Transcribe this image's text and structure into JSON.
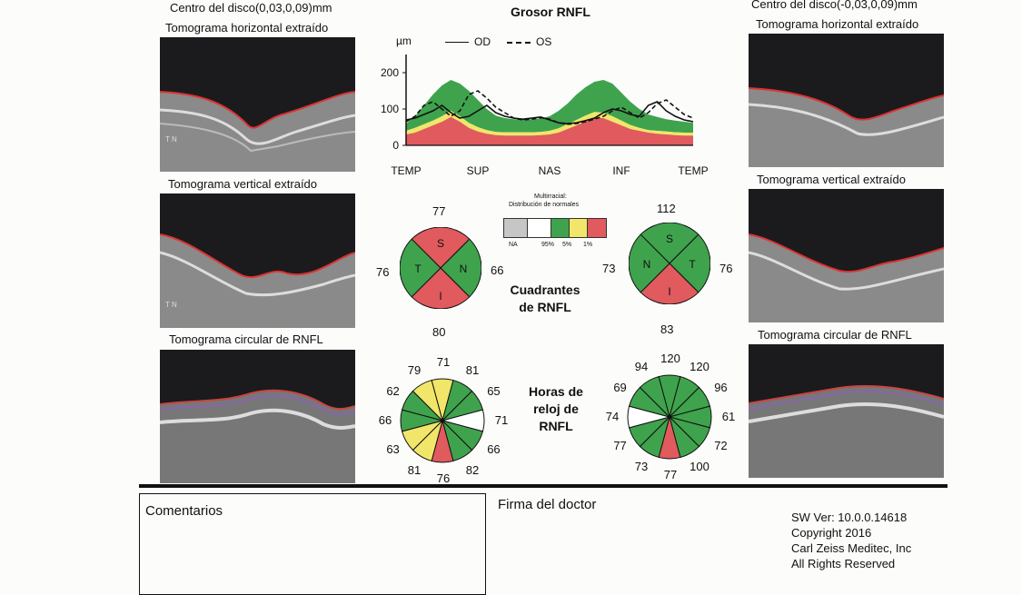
{
  "left": {
    "center_label": "Centro del disco(0,03,0,09)mm",
    "horizontal_label": "Tomograma horizontal extraído",
    "vertical_label": "Tomograma vertical extraído",
    "circular_label": "Tomograma circular de RNFL",
    "scan_mark_h": "T  N",
    "scan_mark_v": "T  N"
  },
  "right": {
    "center_label": "Centro del disco(-0,03,0,09)mm",
    "horizontal_label": "Tomograma horizontal extraído",
    "vertical_label": "Tomograma vertical extraído",
    "circular_label": "Tomograma circular de RNFL"
  },
  "center": {
    "chart_title": "Grosor RNFL",
    "legend_od": "OD",
    "legend_os": "OS",
    "unit": "µm",
    "normative_title": "Multirracial:",
    "normative_subtitle": "Distribución de normales",
    "normative_labels": [
      "NA",
      "95%",
      "5%",
      "1%"
    ],
    "quadrants_title_line1": "Cuadrantes",
    "quadrants_title_line2": "de RNFL",
    "clock_title_line1": "Horas de",
    "clock_title_line2": "reloj de",
    "clock_title_line3": "RNFL"
  },
  "chart_data": {
    "type": "line",
    "title": "Grosor RNFL",
    "ylabel": "µm",
    "ylim": [
      0,
      250
    ],
    "yticks": [
      0,
      100,
      200
    ],
    "x_tick_labels": [
      "TEMP",
      "SUP",
      "NAS",
      "INF",
      "TEMP"
    ],
    "x": [
      0,
      8,
      16,
      24,
      32,
      40,
      48,
      56,
      64,
      72,
      80,
      88,
      96,
      104,
      112,
      120,
      128,
      136,
      144,
      152,
      160,
      168,
      176,
      184,
      192,
      200,
      208,
      216,
      224,
      232,
      240,
      248,
      256
    ],
    "normative_bands": {
      "p1": [
        30,
        35,
        45,
        55,
        65,
        78,
        65,
        48,
        38,
        32,
        28,
        27,
        27,
        27,
        27,
        28,
        30,
        35,
        45,
        55,
        65,
        75,
        75,
        65,
        55,
        45,
        40,
        35,
        32,
        30,
        28,
        27,
        27
      ],
      "p5": [
        40,
        48,
        58,
        68,
        80,
        95,
        80,
        62,
        50,
        42,
        37,
        36,
        36,
        36,
        36,
        37,
        40,
        47,
        58,
        70,
        82,
        92,
        90,
        80,
        68,
        56,
        48,
        42,
        40,
        38,
        36,
        35,
        35
      ],
      "p95": [
        60,
        80,
        110,
        140,
        165,
        180,
        170,
        150,
        125,
        100,
        82,
        75,
        72,
        72,
        72,
        74,
        80,
        95,
        115,
        140,
        160,
        175,
        180,
        170,
        145,
        120,
        100,
        85,
        78,
        72,
        68,
        65,
        62
      ]
    },
    "series": [
      {
        "name": "OD",
        "style": "solid",
        "values": [
          70,
          75,
          85,
          95,
          110,
          90,
          75,
          80,
          95,
          110,
          90,
          80,
          75,
          72,
          75,
          78,
          70,
          62,
          60,
          62,
          68,
          75,
          90,
          100,
          95,
          85,
          80,
          110,
          120,
          95,
          80,
          70,
          65
        ]
      },
      {
        "name": "OS",
        "style": "dashed",
        "values": [
          65,
          80,
          110,
          120,
          100,
          80,
          95,
          140,
          150,
          130,
          105,
          90,
          75,
          70,
          72,
          76,
          72,
          62,
          58,
          60,
          65,
          72,
          80,
          95,
          105,
          90,
          75,
          90,
          115,
          125,
          105,
          85,
          75
        ]
      }
    ]
  },
  "quadrants_od": {
    "S": "77",
    "N": "66",
    "I": "80",
    "T": "76"
  },
  "quadrants_os": {
    "S": "112",
    "T": "76",
    "I": "83",
    "N": "73"
  },
  "clock_od": {
    "labels": [
      "71",
      "81",
      "65",
      "71",
      "66",
      "82",
      "76",
      "81",
      "63",
      "66",
      "62",
      "79"
    ],
    "colors": [
      "yellow",
      "green",
      "green",
      "white",
      "green",
      "green",
      "red",
      "yellow",
      "yellow",
      "green",
      "green",
      "yellow"
    ]
  },
  "clock_os": {
    "labels": [
      "120",
      "120",
      "96",
      "61",
      "72",
      "100",
      "77",
      "73",
      "77",
      "74",
      "69",
      "94"
    ],
    "colors": [
      "green",
      "green",
      "green",
      "green",
      "green",
      "green",
      "red",
      "green",
      "green",
      "white",
      "green",
      "green"
    ]
  },
  "colors": {
    "red": "#e05a5e",
    "green": "#3fa34d",
    "yellow": "#f1e66a",
    "white": "#ffffff",
    "gray": "#c6c6c6"
  },
  "footer": {
    "comments_label": "Comentarios",
    "signature_label": "Firma del doctor",
    "sw_version": "SW Ver: 10.0.0.14618",
    "copyright": "Copyright 2016",
    "company": "Carl Zeiss Meditec, Inc",
    "rights": "All Rights Reserved"
  }
}
